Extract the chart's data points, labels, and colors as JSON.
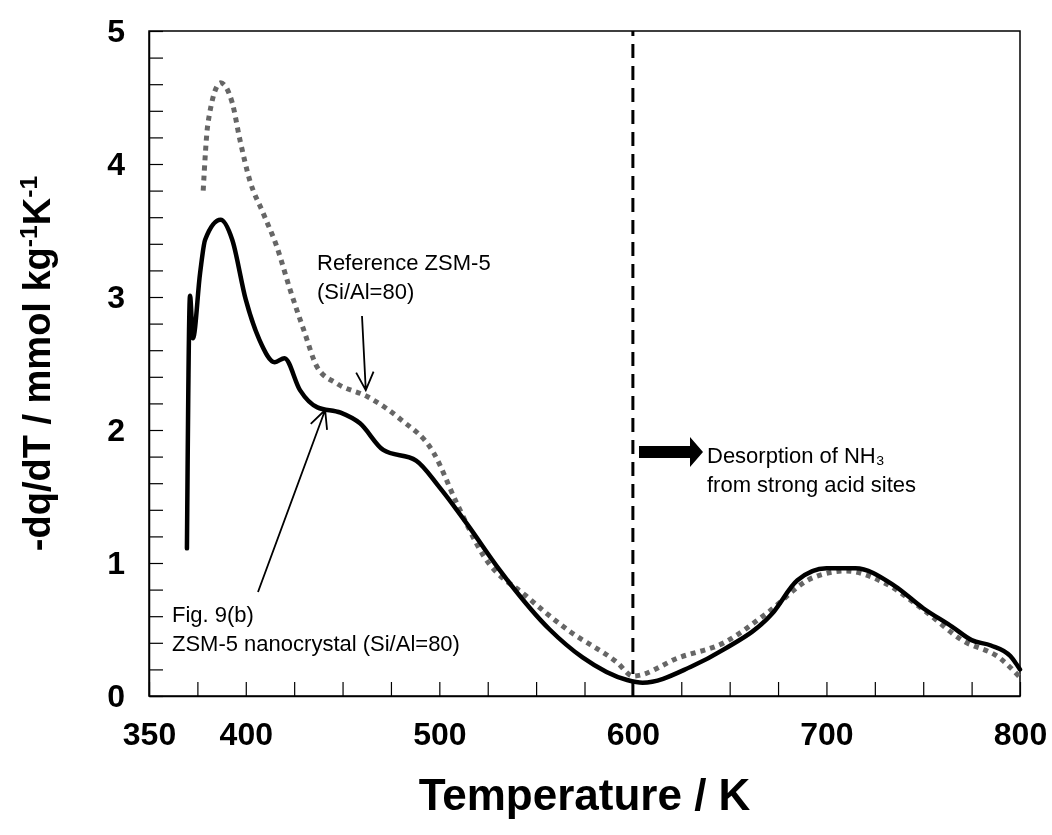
{
  "chart_data": {
    "type": "line",
    "xlabel": "Temperature / K",
    "ylabel": "-dq/dT / mmol kg$^{-1}$K$^{-1}$",
    "xlim": [
      350,
      800
    ],
    "ylim": [
      0,
      5
    ],
    "xticks": [
      350,
      {
        "value": 375,
        "label": null
      },
      400,
      {
        "value": 425,
        "label": null
      },
      {
        "value": 450,
        "label": null
      },
      {
        "value": 475,
        "label": null
      },
      500,
      {
        "value": 525,
        "label": null
      },
      {
        "value": 550,
        "label": null
      },
      {
        "value": 575,
        "label": null
      },
      600,
      {
        "value": 625,
        "label": null
      },
      {
        "value": 650,
        "label": null
      },
      {
        "value": 675,
        "label": null
      },
      700,
      {
        "value": 725,
        "label": null
      },
      {
        "value": 750,
        "label": null
      },
      {
        "value": 775,
        "label": null
      },
      800
    ],
    "yticks": [
      0,
      {
        "value": 0.2,
        "label": null
      },
      {
        "value": 0.4,
        "label": null
      },
      {
        "value": 0.6,
        "label": null
      },
      {
        "value": 0.8,
        "label": null
      },
      1,
      {
        "value": 1.2,
        "label": null
      },
      {
        "value": 1.4,
        "label": null
      },
      {
        "value": 1.6,
        "label": null
      },
      {
        "value": 1.8,
        "label": null
      },
      2,
      {
        "value": 2.2,
        "label": null
      },
      {
        "value": 2.4,
        "label": null
      },
      {
        "value": 2.6,
        "label": null
      },
      {
        "value": 2.8,
        "label": null
      },
      3,
      {
        "value": 3.2,
        "label": null
      },
      {
        "value": 3.4,
        "label": null
      },
      {
        "value": 3.6,
        "label": null
      },
      {
        "value": 3.8,
        "label": null
      },
      4,
      {
        "value": 4.2,
        "label": null
      },
      {
        "value": 4.4,
        "label": null
      },
      {
        "value": 4.6,
        "label": null
      },
      {
        "value": 4.8,
        "label": null
      },
      5
    ],
    "grid": false,
    "series": [
      {
        "color": "#666666",
        "line_style": "dotted",
        "x": [
          378,
          380.5,
          387,
          393,
          397,
          402,
          409,
          416,
          423,
          430,
          437,
          447,
          463,
          480,
          497,
          509,
          523,
          545,
          566,
          592,
          600,
          624,
          647,
          669,
          693,
          710,
          730,
          750,
          770,
          790,
          800
        ],
        "values": [
          3.8,
          4.31,
          4.61,
          4.46,
          4.18,
          3.88,
          3.63,
          3.38,
          3.05,
          2.75,
          2.47,
          2.35,
          2.25,
          2.08,
          1.83,
          1.45,
          1.05,
          0.75,
          0.5,
          0.25,
          0.15,
          0.29,
          0.4,
          0.62,
          0.89,
          0.94,
          0.85,
          0.65,
          0.42,
          0.28,
          0.14
        ]
      },
      {
        "color": "#000000",
        "line_style": "solid",
        "x": [
          369.6,
          371.2,
          372.7,
          376.4,
          379,
          387,
          393,
          400,
          407,
          415,
          420,
          428,
          437,
          449,
          459,
          471,
          488,
          500,
          514,
          531,
          557,
          574,
          597,
          605,
          630,
          647,
          672,
          685,
          700,
          715,
          735,
          750,
          765,
          775,
          785,
          795,
          800
        ],
        "values": [
          1.11,
          3.01,
          2.69,
          3.18,
          3.43,
          3.58,
          3.43,
          2.98,
          2.68,
          2.51,
          2.54,
          2.3,
          2.17,
          2.13,
          2.05,
          1.85,
          1.77,
          1.57,
          1.3,
          0.95,
          0.5,
          0.29,
          0.12,
          0.1,
          0.22,
          0.35,
          0.62,
          0.87,
          0.96,
          0.96,
          0.83,
          0.66,
          0.52,
          0.42,
          0.38,
          0.3,
          0.2
        ]
      }
    ],
    "ref_lines": [
      {
        "axis": "x",
        "value": 600,
        "color": "#000000",
        "line_style": "dashed"
      }
    ],
    "annotations": [
      {
        "text": "Reference ZSM-5\n(Si/Al=80)",
        "x": 462,
        "y": 2.3
      },
      {
        "text": "Fig. 9(b)\nZSM-5 nanocrystal (Si/Al=80)",
        "x": 441,
        "y": 2.15
      },
      "Desorption of NH₃\nfrom strong acid sites"
    ]
  }
}
